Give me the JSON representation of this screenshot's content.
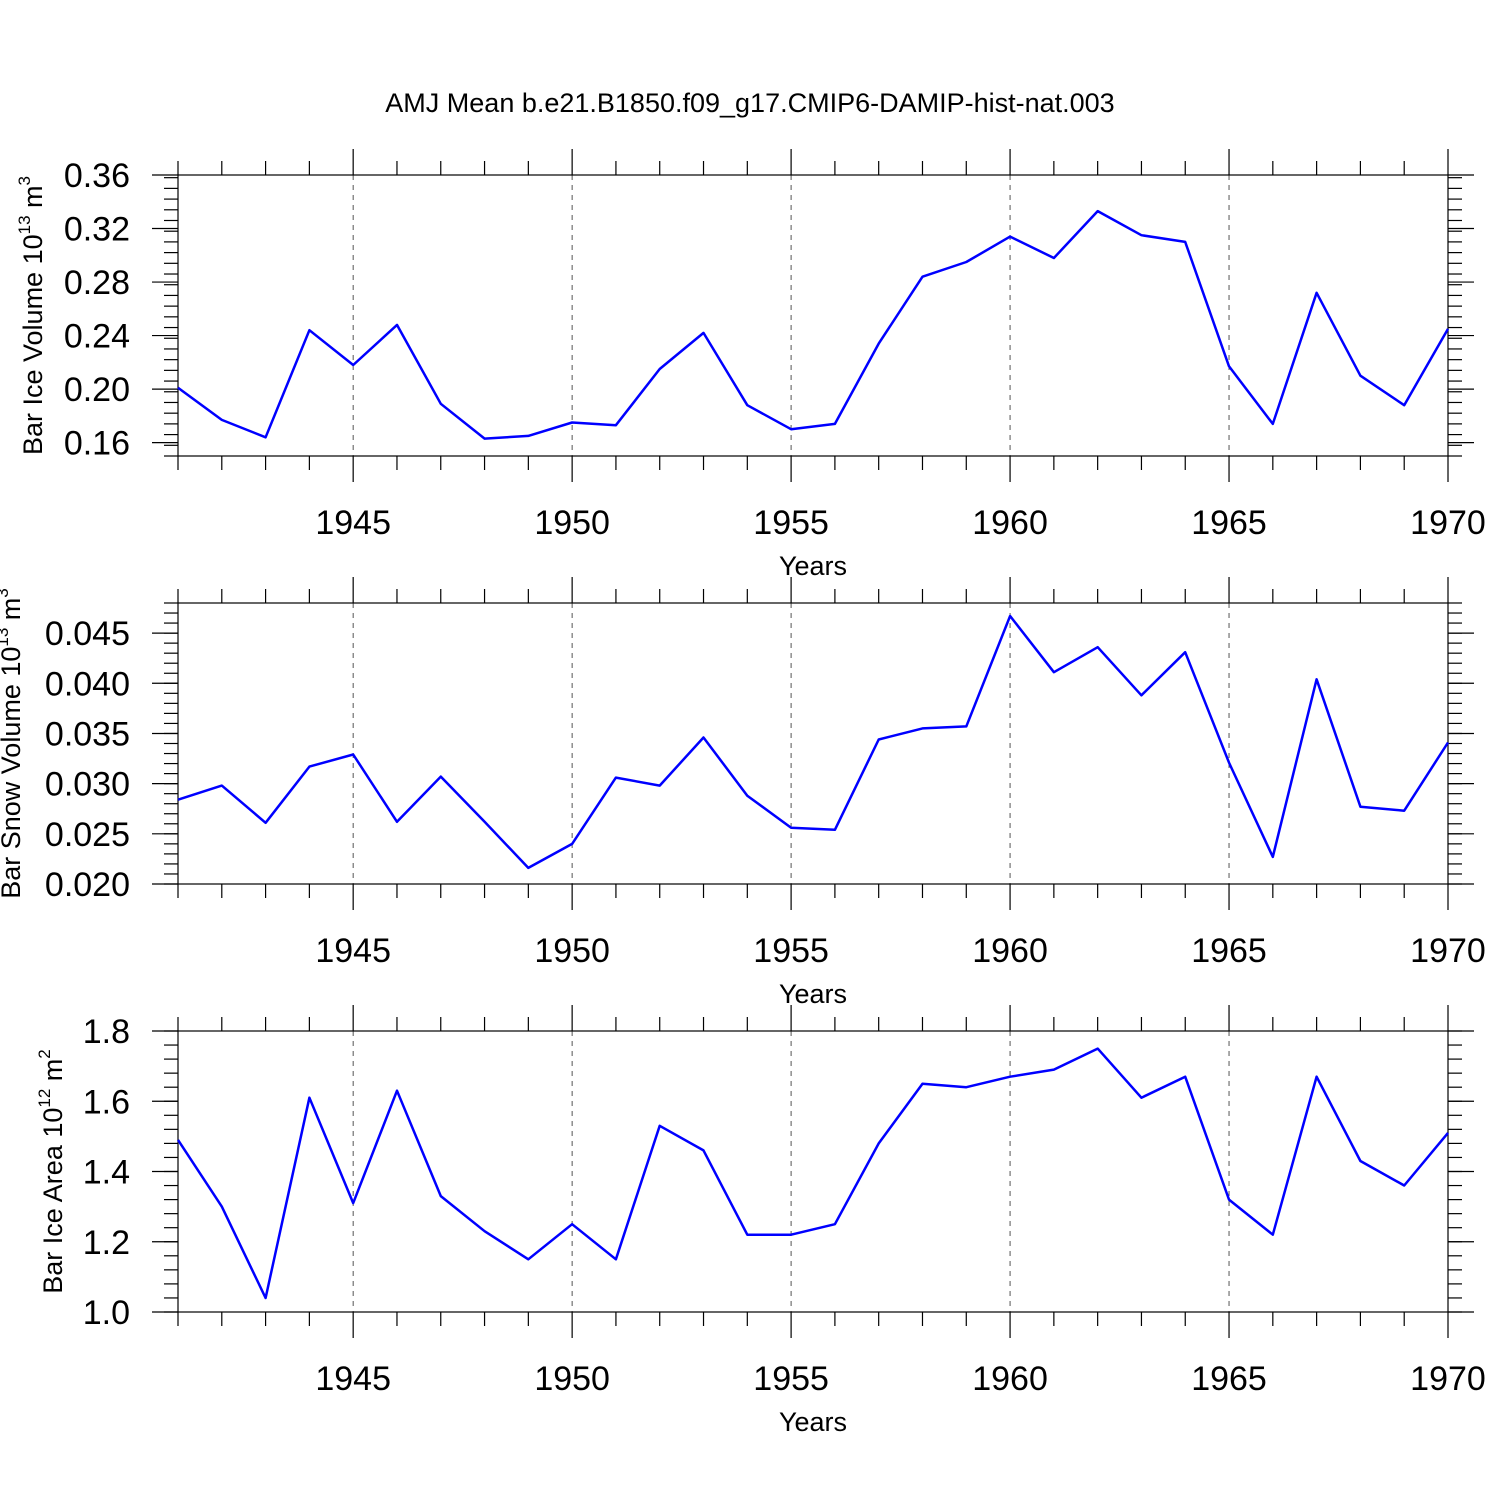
{
  "title": "AMJ Mean b.e21.B1850.f09_g17.CMIP6-DAMIP-hist-nat.003",
  "colors": {
    "series": "#0000ff",
    "frame": "#000000",
    "grid": "#555555"
  },
  "chart_data": [
    {
      "type": "line",
      "ylabel": "Bar Ice Volume 10",
      "ylabel_exponent": "13",
      "ylabel_unit": " m",
      "ylabel_unit_exponent": "3",
      "xlabel": "Years",
      "xlim": [
        1941,
        1970
      ],
      "ylim": [
        0.15,
        0.36
      ],
      "yticks": [
        0.16,
        0.2,
        0.24,
        0.28,
        0.32,
        0.36
      ],
      "ytick_labels": [
        "0.16",
        "0.20",
        "0.24",
        "0.28",
        "0.32",
        "0.36"
      ],
      "yminor_step": 0.008,
      "xticks": [
        1945,
        1950,
        1955,
        1960,
        1965,
        1970
      ],
      "xtick_labels": [
        "1945",
        "1950",
        "1955",
        "1960",
        "1965",
        "1970"
      ],
      "grid": "x-major dashed",
      "x": [
        1941,
        1942,
        1943,
        1944,
        1945,
        1946,
        1947,
        1948,
        1949,
        1950,
        1951,
        1952,
        1953,
        1954,
        1955,
        1956,
        1957,
        1958,
        1959,
        1960,
        1961,
        1962,
        1963,
        1964,
        1965,
        1966,
        1967,
        1968,
        1969,
        1970
      ],
      "values": [
        0.201,
        0.177,
        0.164,
        0.244,
        0.218,
        0.248,
        0.189,
        0.163,
        0.165,
        0.175,
        0.173,
        0.215,
        0.242,
        0.188,
        0.17,
        0.174,
        0.234,
        0.284,
        0.295,
        0.314,
        0.298,
        0.333,
        0.315,
        0.31,
        0.217,
        0.174,
        0.272,
        0.21,
        0.188,
        0.245
      ]
    },
    {
      "type": "line",
      "ylabel": "Bar Snow Volume 10",
      "ylabel_exponent": "13",
      "ylabel_unit": " m",
      "ylabel_unit_exponent": "3",
      "xlabel": "Years",
      "xlim": [
        1941,
        1970
      ],
      "ylim": [
        0.02,
        0.048
      ],
      "yticks": [
        0.02,
        0.025,
        0.03,
        0.035,
        0.04,
        0.045
      ],
      "ytick_labels": [
        "0.020",
        "0.025",
        "0.030",
        "0.035",
        "0.040",
        "0.045"
      ],
      "yminor_step": 0.001,
      "xticks": [
        1945,
        1950,
        1955,
        1960,
        1965,
        1970
      ],
      "xtick_labels": [
        "1945",
        "1950",
        "1955",
        "1960",
        "1965",
        "1970"
      ],
      "grid": "x-major dashed",
      "x": [
        1941,
        1942,
        1943,
        1944,
        1945,
        1946,
        1947,
        1948,
        1949,
        1950,
        1951,
        1952,
        1953,
        1954,
        1955,
        1956,
        1957,
        1958,
        1959,
        1960,
        1961,
        1962,
        1963,
        1964,
        1965,
        1966,
        1967,
        1968,
        1969,
        1970
      ],
      "values": [
        0.0284,
        0.0298,
        0.0261,
        0.0317,
        0.0329,
        0.0262,
        0.0307,
        0.0262,
        0.0216,
        0.024,
        0.0306,
        0.0298,
        0.0346,
        0.0288,
        0.0256,
        0.0254,
        0.0344,
        0.0355,
        0.0357,
        0.0467,
        0.0411,
        0.0436,
        0.0388,
        0.0431,
        0.0321,
        0.0227,
        0.0404,
        0.0277,
        0.0273,
        0.0341
      ]
    },
    {
      "type": "line",
      "ylabel": "Bar Ice Area 10",
      "ylabel_exponent": "12",
      "ylabel_unit": " m",
      "ylabel_unit_exponent": "2",
      "xlabel": "Years",
      "xlim": [
        1941,
        1970
      ],
      "ylim": [
        1.0,
        1.8
      ],
      "yticks": [
        1.0,
        1.2,
        1.4,
        1.6,
        1.8
      ],
      "ytick_labels": [
        "1.0",
        "1.2",
        "1.4",
        "1.6",
        "1.8"
      ],
      "yminor_step": 0.04,
      "xticks": [
        1945,
        1950,
        1955,
        1960,
        1965,
        1970
      ],
      "xtick_labels": [
        "1945",
        "1950",
        "1955",
        "1960",
        "1965",
        "1970"
      ],
      "grid": "x-major dashed",
      "x": [
        1941,
        1942,
        1943,
        1944,
        1945,
        1946,
        1947,
        1948,
        1949,
        1950,
        1951,
        1952,
        1953,
        1954,
        1955,
        1956,
        1957,
        1958,
        1959,
        1960,
        1961,
        1962,
        1963,
        1964,
        1965,
        1966,
        1967,
        1968,
        1969,
        1970
      ],
      "values": [
        1.49,
        1.3,
        1.04,
        1.61,
        1.31,
        1.63,
        1.33,
        1.23,
        1.15,
        1.25,
        1.15,
        1.53,
        1.46,
        1.22,
        1.22,
        1.25,
        1.48,
        1.65,
        1.64,
        1.67,
        1.69,
        1.75,
        1.61,
        1.67,
        1.32,
        1.22,
        1.67,
        1.43,
        1.36,
        1.51
      ]
    }
  ]
}
